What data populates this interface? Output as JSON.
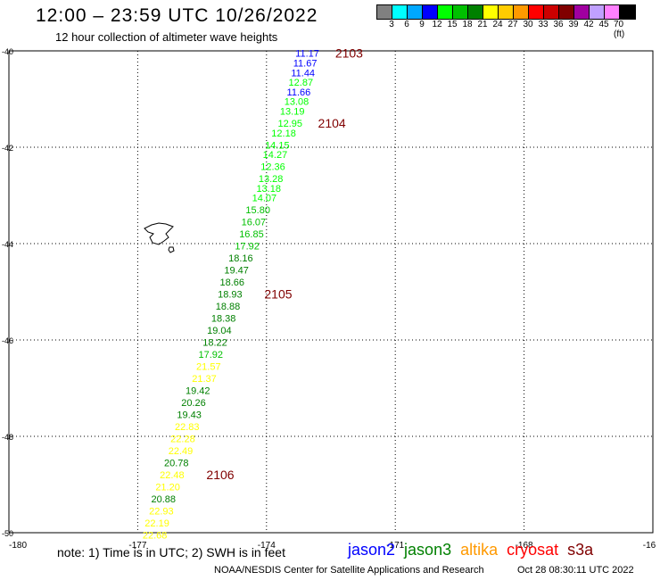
{
  "header": {
    "title": "12:00 – 23:59 UTC 10/26/2022",
    "subtitle": "12 hour collection of altimeter wave heights"
  },
  "colorbar": {
    "colors": [
      "#808080",
      "#00ffff",
      "#00a8ff",
      "#0000ff",
      "#00ff00",
      "#00c000",
      "#008000",
      "#ffff00",
      "#ffcc00",
      "#ff9900",
      "#ff0000",
      "#cc0000",
      "#800000",
      "#a000a0",
      "#c0a0ff",
      "#ff80ff",
      "#000000"
    ],
    "labels": [
      "3",
      "6",
      "9",
      "12",
      "15",
      "18",
      "21",
      "24",
      "27",
      "30",
      "33",
      "36",
      "39",
      "42",
      "45",
      "70 (ft)"
    ]
  },
  "chart_data": {
    "type": "scatter",
    "x_ticks": [
      "-180",
      "-177",
      "-174",
      "-171",
      "-168",
      "-16"
    ],
    "y_ticks": [
      "-40",
      "-42",
      "-44",
      "-46",
      "-48",
      "-50"
    ],
    "points": [
      {
        "lon": -173.05,
        "lat": -40.05,
        "label": "11.17",
        "color": "#0000ff"
      },
      {
        "lon": -173.1,
        "lat": -40.25,
        "label": "11.67",
        "color": "#0000ff"
      },
      {
        "lon": -173.15,
        "lat": -40.45,
        "label": "11.44",
        "color": "#0000ff"
      },
      {
        "lon": -173.2,
        "lat": -40.65,
        "label": "12.87",
        "color": "#00ff00"
      },
      {
        "lon": -173.25,
        "lat": -40.85,
        "label": "11.66",
        "color": "#0000ff"
      },
      {
        "lon": -173.3,
        "lat": -41.05,
        "label": "13.08",
        "color": "#00ff00"
      },
      {
        "lon": -173.4,
        "lat": -41.25,
        "label": "13.19",
        "color": "#00ff00"
      },
      {
        "lon": -173.45,
        "lat": -41.5,
        "label": "12.95",
        "color": "#00ff00"
      },
      {
        "lon": -173.6,
        "lat": -41.7,
        "label": "12.18",
        "color": "#00ff00"
      },
      {
        "lon": -173.75,
        "lat": -41.95,
        "label": "14.15",
        "color": "#00ff00"
      },
      {
        "lon": -173.8,
        "lat": -42.15,
        "label": "14.27",
        "color": "#00ff00"
      },
      {
        "lon": -173.85,
        "lat": -42.4,
        "label": "12.36",
        "color": "#00ff00"
      },
      {
        "lon": -173.9,
        "lat": -42.65,
        "label": "13.28",
        "color": "#00ff00"
      },
      {
        "lon": -173.95,
        "lat": -42.85,
        "label": "13.18",
        "color": "#00ff00"
      },
      {
        "lon": -174.05,
        "lat": -43.05,
        "label": "14.07",
        "color": "#00ff00"
      },
      {
        "lon": -174.2,
        "lat": -43.3,
        "label": "15.80",
        "color": "#00c000"
      },
      {
        "lon": -174.3,
        "lat": -43.55,
        "label": "16.07",
        "color": "#00c000"
      },
      {
        "lon": -174.35,
        "lat": -43.8,
        "label": "16.85",
        "color": "#00c000"
      },
      {
        "lon": -174.45,
        "lat": -44.05,
        "label": "17.92",
        "color": "#00c000"
      },
      {
        "lon": -174.6,
        "lat": -44.3,
        "label": "18.16",
        "color": "#008000"
      },
      {
        "lon": -174.7,
        "lat": -44.55,
        "label": "19.47",
        "color": "#008000"
      },
      {
        "lon": -174.8,
        "lat": -44.8,
        "label": "18.66",
        "color": "#008000"
      },
      {
        "lon": -174.85,
        "lat": -45.05,
        "label": "18.93",
        "color": "#008000"
      },
      {
        "lon": -174.9,
        "lat": -45.3,
        "label": "18.88",
        "color": "#008000"
      },
      {
        "lon": -175.0,
        "lat": -45.55,
        "label": "18.38",
        "color": "#008000"
      },
      {
        "lon": -175.1,
        "lat": -45.8,
        "label": "19.04",
        "color": "#008000"
      },
      {
        "lon": -175.2,
        "lat": -46.05,
        "label": "18.22",
        "color": "#008000"
      },
      {
        "lon": -175.3,
        "lat": -46.3,
        "label": "17.92",
        "color": "#00c000"
      },
      {
        "lon": -175.35,
        "lat": -46.55,
        "label": "21.57",
        "color": "#ffff00"
      },
      {
        "lon": -175.45,
        "lat": -46.8,
        "label": "21.37",
        "color": "#ffff00"
      },
      {
        "lon": -175.6,
        "lat": -47.05,
        "label": "19.42",
        "color": "#008000"
      },
      {
        "lon": -175.7,
        "lat": -47.3,
        "label": "20.26",
        "color": "#008000"
      },
      {
        "lon": -175.8,
        "lat": -47.55,
        "label": "19.43",
        "color": "#008000"
      },
      {
        "lon": -175.85,
        "lat": -47.8,
        "label": "22.83",
        "color": "#ffff00"
      },
      {
        "lon": -175.95,
        "lat": -48.05,
        "label": "22.28",
        "color": "#ffff00"
      },
      {
        "lon": -176.0,
        "lat": -48.3,
        "label": "22.49",
        "color": "#ffff00"
      },
      {
        "lon": -176.1,
        "lat": -48.55,
        "label": "20.78",
        "color": "#008000"
      },
      {
        "lon": -176.2,
        "lat": -48.8,
        "label": "22.48",
        "color": "#ffff00"
      },
      {
        "lon": -176.3,
        "lat": -49.05,
        "label": "21.20",
        "color": "#ffff00"
      },
      {
        "lon": -176.4,
        "lat": -49.3,
        "label": "20.88",
        "color": "#008000"
      },
      {
        "lon": -176.45,
        "lat": -49.55,
        "label": "22.93",
        "color": "#ffff00"
      },
      {
        "lon": -176.55,
        "lat": -49.8,
        "label": "22.19",
        "color": "#ffff00"
      },
      {
        "lon": -176.6,
        "lat": -50.05,
        "label": "22.68",
        "color": "#ffff00"
      }
    ],
    "time_labels": [
      {
        "lon": -172.4,
        "lat": -40.05,
        "label": "2103"
      },
      {
        "lon": -172.8,
        "lat": -41.5,
        "label": "2104"
      },
      {
        "lon": -174.05,
        "lat": -45.05,
        "label": "2105"
      },
      {
        "lon": -175.4,
        "lat": -48.8,
        "label": "2106"
      }
    ],
    "time_label_color": "#800000"
  },
  "footer": {
    "note": "note:  1) Time is in UTC;  2) SWH is in feet",
    "legend": [
      {
        "name": "jason2",
        "color": "#0000ff"
      },
      {
        "name": "jason3",
        "color": "#008000"
      },
      {
        "name": "altika",
        "color": "#ff9900"
      },
      {
        "name": "cryosat",
        "color": "#ff0000"
      },
      {
        "name": "s3a",
        "color": "#800000"
      }
    ],
    "credit": "NOAA/NESDIS Center for Satellite Applications and Research",
    "timestamp": "Oct 28 08:30:11 UTC 2022"
  }
}
